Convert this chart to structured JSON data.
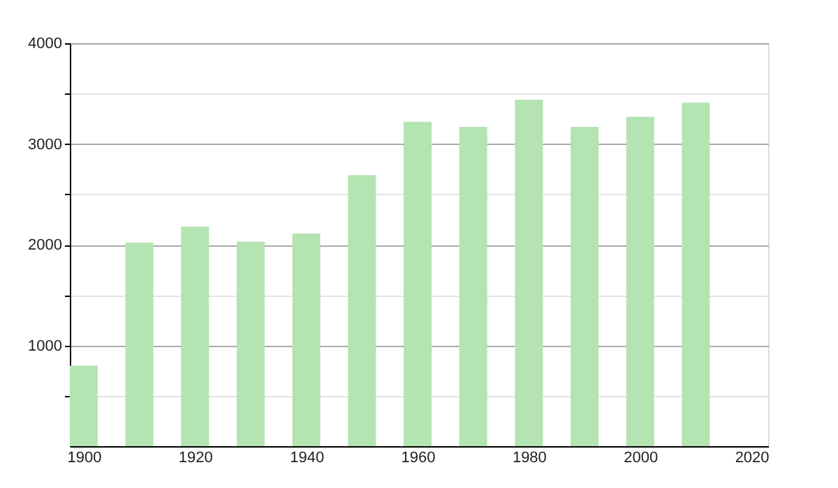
{
  "chart_data": {
    "type": "bar",
    "x": [
      1900,
      1910,
      1920,
      1930,
      1940,
      1950,
      1960,
      1970,
      1980,
      1990,
      2000,
      2010
    ],
    "values": [
      800,
      2020,
      2180,
      2030,
      2110,
      2690,
      3220,
      3170,
      3440,
      3170,
      3270,
      3410
    ],
    "color": "#b3e4b1",
    "xlim": [
      1897.5,
      2023
    ],
    "xticks": [
      1900,
      1920,
      1940,
      1960,
      1980,
      2000,
      2020
    ],
    "ylim": [
      0,
      4000
    ],
    "yticks": [
      {
        "value": 500,
        "label": null
      },
      1000,
      {
        "value": 1500,
        "label": null
      },
      2000,
      {
        "value": 2500,
        "label": null
      },
      3000,
      {
        "value": 3500,
        "label": null
      },
      4000
    ],
    "grid": "y"
  }
}
